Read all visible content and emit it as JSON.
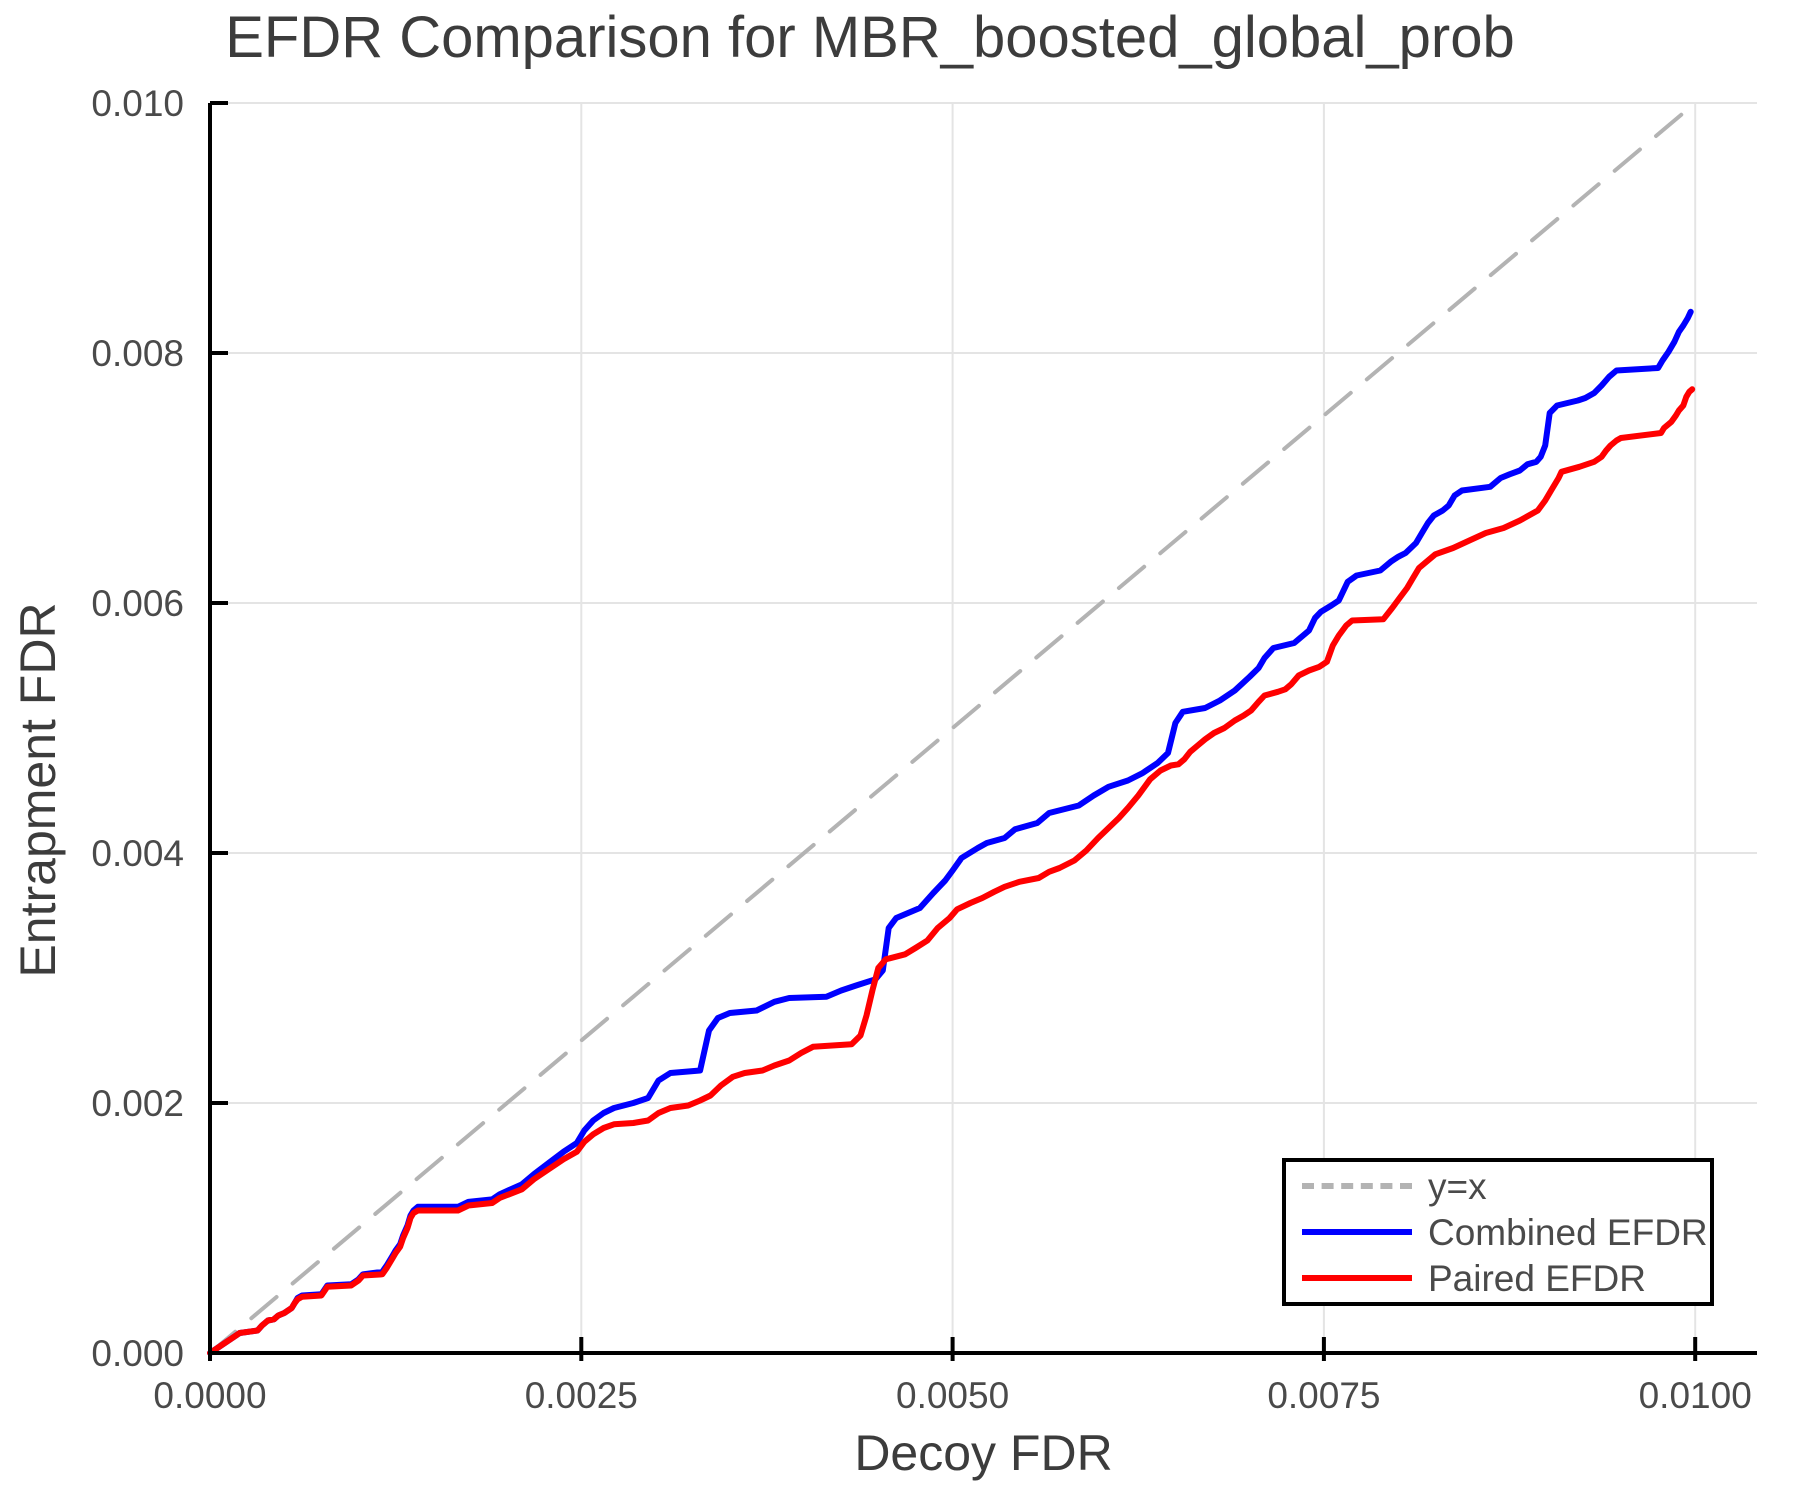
{
  "title": "EFDR Comparison for MBR_boosted_global_prob",
  "axes": {
    "x": {
      "label": "Decoy FDR"
    },
    "y": {
      "label": "Entrapment FDR"
    }
  },
  "legend": {
    "entries": [
      {
        "label": "y=x",
        "color": "#b3b3b3",
        "style": "dashed"
      },
      {
        "label": "Combined EFDR",
        "color": "#0000ff",
        "style": "solid"
      },
      {
        "label": "Paired EFDR",
        "color": "#ff0000",
        "style": "solid"
      }
    ]
  },
  "colors": {
    "background": "#ffffff",
    "grid": "#e4e4e4",
    "spine": "#000000",
    "tick_text": "#4a4a4a",
    "title_text": "#3c3c3c",
    "reference_line": "#b3b3b3",
    "combined": "#0000ff",
    "paired": "#ff0000"
  },
  "chart_data": {
    "type": "line",
    "title": "EFDR Comparison for MBR_boosted_global_prob",
    "xlabel": "Decoy FDR",
    "ylabel": "Entrapment FDR",
    "xlim": [
      0,
      0.0104
    ],
    "ylim": [
      0,
      0.01
    ],
    "grid": true,
    "legend_position": "lower right",
    "x_ticks": [
      0,
      0.0025,
      0.005,
      0.0075,
      0.01
    ],
    "x_tick_labels": [
      "0.0000",
      "0.0025",
      "0.0050",
      "0.0075",
      "0.0100"
    ],
    "y_ticks": [
      0,
      0.002,
      0.004,
      0.006,
      0.008,
      0.01
    ],
    "y_tick_labels": [
      "0.000",
      "0.002",
      "0.004",
      "0.006",
      "0.008",
      "0.010"
    ],
    "series": [
      {
        "name": "y=x",
        "color": "#b3b3b3",
        "style": "dashed",
        "width": 4,
        "points": [
          [
            0,
            0
          ],
          [
            0.01,
            0.01
          ]
        ]
      },
      {
        "name": "Combined EFDR",
        "color": "#0000ff",
        "style": "solid",
        "width": 6,
        "points": [
          [
            0,
            0
          ],
          [
            0.0002,
            0.00016
          ],
          [
            0.00032,
            0.00018
          ],
          [
            0.00035,
            0.00022
          ],
          [
            0.00039,
            0.00026
          ],
          [
            0.00043,
            0.00027
          ],
          [
            0.00046,
            0.0003
          ],
          [
            0.0005,
            0.00032
          ],
          [
            0.00055,
            0.00036
          ],
          [
            0.00057,
            0.0004
          ],
          [
            0.00059,
            0.00044
          ],
          [
            0.00062,
            0.00046
          ],
          [
            0.00075,
            0.00047
          ],
          [
            0.00079,
            0.00054
          ],
          [
            0.00095,
            0.00055
          ],
          [
            0.001,
            0.00059
          ],
          [
            0.00103,
            0.00063
          ],
          [
            0.00116,
            0.00065
          ],
          [
            0.00119,
            0.0007
          ],
          [
            0.00121,
            0.00074
          ],
          [
            0.00123,
            0.00078
          ],
          [
            0.00125,
            0.00082
          ],
          [
            0.00128,
            0.00087
          ],
          [
            0.0013,
            0.00094
          ],
          [
            0.00133,
            0.00102
          ],
          [
            0.00135,
            0.0011
          ],
          [
            0.00137,
            0.00114
          ],
          [
            0.0014,
            0.00117
          ],
          [
            0.00167,
            0.00117
          ],
          [
            0.00174,
            0.00121
          ],
          [
            0.0019,
            0.00123
          ],
          [
            0.00195,
            0.00127
          ],
          [
            0.0021,
            0.00135
          ],
          [
            0.00218,
            0.00143
          ],
          [
            0.00228,
            0.00152
          ],
          [
            0.00238,
            0.00161
          ],
          [
            0.00247,
            0.00168
          ],
          [
            0.00252,
            0.00178
          ],
          [
            0.00258,
            0.00186
          ],
          [
            0.00265,
            0.00192
          ],
          [
            0.00272,
            0.00196
          ],
          [
            0.00285,
            0.002
          ],
          [
            0.00295,
            0.00204
          ],
          [
            0.00302,
            0.00218
          ],
          [
            0.0031,
            0.00224
          ],
          [
            0.0033,
            0.00226
          ],
          [
            0.00336,
            0.00258
          ],
          [
            0.00342,
            0.00268
          ],
          [
            0.0035,
            0.00272
          ],
          [
            0.00368,
            0.00274
          ],
          [
            0.0038,
            0.00281
          ],
          [
            0.0039,
            0.00284
          ],
          [
            0.00415,
            0.00285
          ],
          [
            0.00425,
            0.0029
          ],
          [
            0.00435,
            0.00294
          ],
          [
            0.00448,
            0.00299
          ],
          [
            0.00453,
            0.00306
          ],
          [
            0.00457,
            0.0034
          ],
          [
            0.00462,
            0.00348
          ],
          [
            0.00478,
            0.00356
          ],
          [
            0.00487,
            0.00368
          ],
          [
            0.00495,
            0.00378
          ],
          [
            0.005,
            0.00386
          ],
          [
            0.00506,
            0.00396
          ],
          [
            0.00517,
            0.00404
          ],
          [
            0.00523,
            0.00408
          ],
          [
            0.00535,
            0.00412
          ],
          [
            0.00542,
            0.00419
          ],
          [
            0.00557,
            0.00424
          ],
          [
            0.00565,
            0.00432
          ],
          [
            0.00585,
            0.00438
          ],
          [
            0.00595,
            0.00446
          ],
          [
            0.00605,
            0.00453
          ],
          [
            0.00618,
            0.00458
          ],
          [
            0.00628,
            0.00464
          ],
          [
            0.00638,
            0.00472
          ],
          [
            0.00645,
            0.0048
          ],
          [
            0.0065,
            0.00504
          ],
          [
            0.00655,
            0.00513
          ],
          [
            0.0067,
            0.00516
          ],
          [
            0.0068,
            0.00522
          ],
          [
            0.0069,
            0.0053
          ],
          [
            0.007,
            0.00541
          ],
          [
            0.00706,
            0.00548
          ],
          [
            0.0071,
            0.00556
          ],
          [
            0.00716,
            0.00564
          ],
          [
            0.0073,
            0.00568
          ],
          [
            0.00736,
            0.00574
          ],
          [
            0.0074,
            0.00578
          ],
          [
            0.00744,
            0.00588
          ],
          [
            0.00748,
            0.00593
          ],
          [
            0.00755,
            0.00598
          ],
          [
            0.0076,
            0.00602
          ],
          [
            0.00766,
            0.00617
          ],
          [
            0.00772,
            0.00622
          ],
          [
            0.00788,
            0.00626
          ],
          [
            0.00795,
            0.00633
          ],
          [
            0.008,
            0.00637
          ],
          [
            0.00805,
            0.0064
          ],
          [
            0.00812,
            0.00648
          ],
          [
            0.00816,
            0.00656
          ],
          [
            0.0082,
            0.00664
          ],
          [
            0.00824,
            0.0067
          ],
          [
            0.0083,
            0.00674
          ],
          [
            0.00834,
            0.00678
          ],
          [
            0.00838,
            0.00686
          ],
          [
            0.00843,
            0.0069
          ],
          [
            0.00862,
            0.00693
          ],
          [
            0.00869,
            0.007
          ],
          [
            0.00875,
            0.00703
          ],
          [
            0.00882,
            0.00706
          ],
          [
            0.00887,
            0.00711
          ],
          [
            0.00893,
            0.00713
          ],
          [
            0.00896,
            0.00717
          ],
          [
            0.00899,
            0.00726
          ],
          [
            0.00902,
            0.00752
          ],
          [
            0.00907,
            0.00758
          ],
          [
            0.00921,
            0.00762
          ],
          [
            0.00926,
            0.00764
          ],
          [
            0.00932,
            0.00768
          ],
          [
            0.00937,
            0.00774
          ],
          [
            0.00942,
            0.00781
          ],
          [
            0.00947,
            0.00786
          ],
          [
            0.00975,
            0.00788
          ],
          [
            0.00978,
            0.00794
          ],
          [
            0.00982,
            0.00801
          ],
          [
            0.00986,
            0.00809
          ],
          [
            0.00989,
            0.00817
          ],
          [
            0.00992,
            0.00822
          ],
          [
            0.00995,
            0.00828
          ],
          [
            0.00997,
            0.00833
          ]
        ]
      },
      {
        "name": "Paired EFDR",
        "color": "#ff0000",
        "style": "solid",
        "width": 6,
        "points": [
          [
            0,
            0
          ],
          [
            0.0002,
            0.00016
          ],
          [
            0.00032,
            0.00018
          ],
          [
            0.00035,
            0.00022
          ],
          [
            0.00039,
            0.00026
          ],
          [
            0.00043,
            0.00027
          ],
          [
            0.00046,
            0.0003
          ],
          [
            0.0005,
            0.00032
          ],
          [
            0.00055,
            0.00036
          ],
          [
            0.00057,
            0.0004
          ],
          [
            0.00059,
            0.00043
          ],
          [
            0.00062,
            0.00045
          ],
          [
            0.00075,
            0.00046
          ],
          [
            0.00079,
            0.00053
          ],
          [
            0.00095,
            0.00054
          ],
          [
            0.001,
            0.00058
          ],
          [
            0.00103,
            0.00062
          ],
          [
            0.00116,
            0.00063
          ],
          [
            0.00119,
            0.00068
          ],
          [
            0.00121,
            0.00072
          ],
          [
            0.00123,
            0.00076
          ],
          [
            0.00125,
            0.0008
          ],
          [
            0.00128,
            0.00085
          ],
          [
            0.0013,
            0.00092
          ],
          [
            0.00133,
            0.001
          ],
          [
            0.00135,
            0.00108
          ],
          [
            0.00137,
            0.00112
          ],
          [
            0.0014,
            0.00114
          ],
          [
            0.00167,
            0.00114
          ],
          [
            0.00174,
            0.00118
          ],
          [
            0.0019,
            0.0012
          ],
          [
            0.00195,
            0.00124
          ],
          [
            0.0021,
            0.00131
          ],
          [
            0.00218,
            0.00139
          ],
          [
            0.00228,
            0.00147
          ],
          [
            0.00238,
            0.00155
          ],
          [
            0.00247,
            0.00161
          ],
          [
            0.00252,
            0.00169
          ],
          [
            0.00258,
            0.00175
          ],
          [
            0.00265,
            0.0018
          ],
          [
            0.00272,
            0.00183
          ],
          [
            0.00285,
            0.00184
          ],
          [
            0.00295,
            0.00186
          ],
          [
            0.00302,
            0.00192
          ],
          [
            0.0031,
            0.00196
          ],
          [
            0.00322,
            0.00198
          ],
          [
            0.0033,
            0.00202
          ],
          [
            0.00337,
            0.00206
          ],
          [
            0.00344,
            0.00214
          ],
          [
            0.00352,
            0.00221
          ],
          [
            0.0036,
            0.00224
          ],
          [
            0.00372,
            0.00226
          ],
          [
            0.0038,
            0.0023
          ],
          [
            0.0039,
            0.00234
          ],
          [
            0.00398,
            0.0024
          ],
          [
            0.00406,
            0.00245
          ],
          [
            0.00432,
            0.00247
          ],
          [
            0.00438,
            0.00254
          ],
          [
            0.00442,
            0.0027
          ],
          [
            0.00446,
            0.0029
          ],
          [
            0.0045,
            0.00308
          ],
          [
            0.00455,
            0.00315
          ],
          [
            0.00468,
            0.00319
          ],
          [
            0.00475,
            0.00324
          ],
          [
            0.00483,
            0.0033
          ],
          [
            0.0049,
            0.0034
          ],
          [
            0.00498,
            0.00348
          ],
          [
            0.00503,
            0.00355
          ],
          [
            0.00512,
            0.0036
          ],
          [
            0.0052,
            0.00364
          ],
          [
            0.00528,
            0.00369
          ],
          [
            0.00535,
            0.00373
          ],
          [
            0.00545,
            0.00377
          ],
          [
            0.00558,
            0.0038
          ],
          [
            0.00565,
            0.00385
          ],
          [
            0.00572,
            0.00388
          ],
          [
            0.00582,
            0.00394
          ],
          [
            0.0059,
            0.00402
          ],
          [
            0.00598,
            0.00412
          ],
          [
            0.00605,
            0.0042
          ],
          [
            0.00612,
            0.00428
          ],
          [
            0.00618,
            0.00436
          ],
          [
            0.00625,
            0.00446
          ],
          [
            0.00633,
            0.00459
          ],
          [
            0.0064,
            0.00466
          ],
          [
            0.00647,
            0.0047
          ],
          [
            0.00652,
            0.00471
          ],
          [
            0.00656,
            0.00475
          ],
          [
            0.0066,
            0.00481
          ],
          [
            0.00665,
            0.00486
          ],
          [
            0.0067,
            0.00491
          ],
          [
            0.00676,
            0.00496
          ],
          [
            0.00683,
            0.005
          ],
          [
            0.0069,
            0.00506
          ],
          [
            0.00696,
            0.0051
          ],
          [
            0.00701,
            0.00514
          ],
          [
            0.00706,
            0.00521
          ],
          [
            0.0071,
            0.00526
          ],
          [
            0.00719,
            0.00529
          ],
          [
            0.00724,
            0.00531
          ],
          [
            0.00728,
            0.00535
          ],
          [
            0.00733,
            0.00542
          ],
          [
            0.0074,
            0.00546
          ],
          [
            0.00747,
            0.00549
          ],
          [
            0.00752,
            0.00553
          ],
          [
            0.00756,
            0.00566
          ],
          [
            0.0076,
            0.00574
          ],
          [
            0.00765,
            0.00582
          ],
          [
            0.00769,
            0.00586
          ],
          [
            0.0079,
            0.00587
          ],
          [
            0.00796,
            0.00596
          ],
          [
            0.00801,
            0.00604
          ],
          [
            0.00806,
            0.00612
          ],
          [
            0.0081,
            0.0062
          ],
          [
            0.00814,
            0.00628
          ],
          [
            0.00825,
            0.00639
          ],
          [
            0.00837,
            0.00644
          ],
          [
            0.00848,
            0.0065
          ],
          [
            0.00859,
            0.00656
          ],
          [
            0.00871,
            0.0066
          ],
          [
            0.00882,
            0.00666
          ],
          [
            0.00894,
            0.00674
          ],
          [
            0.00899,
            0.00682
          ],
          [
            0.00903,
            0.0069
          ],
          [
            0.00908,
            0.007
          ],
          [
            0.0091,
            0.00705
          ],
          [
            0.00922,
            0.00709
          ],
          [
            0.00932,
            0.00713
          ],
          [
            0.00937,
            0.00717
          ],
          [
            0.0094,
            0.00722
          ],
          [
            0.00943,
            0.00726
          ],
          [
            0.00947,
            0.0073
          ],
          [
            0.0095,
            0.00732
          ],
          [
            0.00977,
            0.00736
          ],
          [
            0.00979,
            0.0074
          ],
          [
            0.00984,
            0.00745
          ],
          [
            0.00987,
            0.0075
          ],
          [
            0.00989,
            0.00754
          ],
          [
            0.00992,
            0.00758
          ],
          [
            0.00994,
            0.00765
          ],
          [
            0.00996,
            0.00769
          ],
          [
            0.00998,
            0.00771
          ]
        ]
      }
    ]
  }
}
